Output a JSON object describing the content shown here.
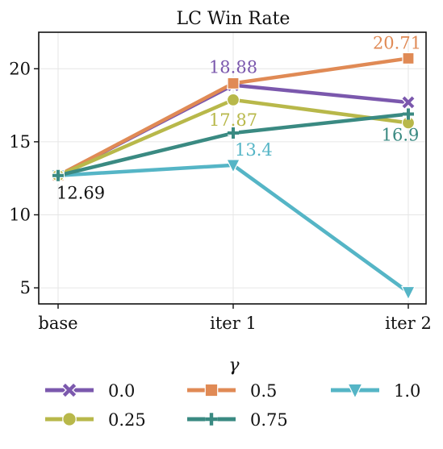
{
  "chart_data": {
    "type": "line",
    "title": "LC Win Rate",
    "xlabel": "",
    "ylabel": "",
    "categories": [
      "base",
      "iter 1",
      "iter 2"
    ],
    "yticks": [
      5,
      10,
      15,
      20
    ],
    "ylim": [
      3.9,
      22.5
    ],
    "grid": true,
    "legend": {
      "title": "γ",
      "placement": "bottom"
    },
    "series": [
      {
        "name": "0.0",
        "values": [
          12.69,
          18.88,
          17.7
        ],
        "color": "#7b58ad",
        "marker": "x"
      },
      {
        "name": "0.5",
        "values": [
          12.69,
          19.0,
          20.71
        ],
        "color": "#e08a55",
        "marker": "square"
      },
      {
        "name": "1.0",
        "values": [
          12.69,
          13.4,
          4.7
        ],
        "color": "#55b5c6",
        "marker": "triangle-down"
      },
      {
        "name": "0.25",
        "values": [
          12.69,
          17.87,
          16.3
        ],
        "color": "#b8b84a",
        "marker": "circle"
      },
      {
        "name": "0.75",
        "values": [
          12.69,
          15.6,
          16.9
        ],
        "color": "#3a8a82",
        "marker": "plus"
      }
    ],
    "annotations": [
      {
        "text": "12.69",
        "x": "base",
        "y": 12.69,
        "color": "#111111"
      },
      {
        "text": "18.88",
        "x": "iter 1",
        "y": 18.88,
        "color": "#7b58ad"
      },
      {
        "text": "17.87",
        "x": "iter 1",
        "y": 17.87,
        "color": "#b8b84a"
      },
      {
        "text": "13.4",
        "x": "iter 1",
        "y": 13.4,
        "color": "#55b5c6"
      },
      {
        "text": "20.71",
        "x": "iter 2",
        "y": 20.71,
        "color": "#e08a55"
      },
      {
        "text": "16.9",
        "x": "iter 2",
        "y": 16.9,
        "color": "#3a8a82"
      }
    ]
  }
}
